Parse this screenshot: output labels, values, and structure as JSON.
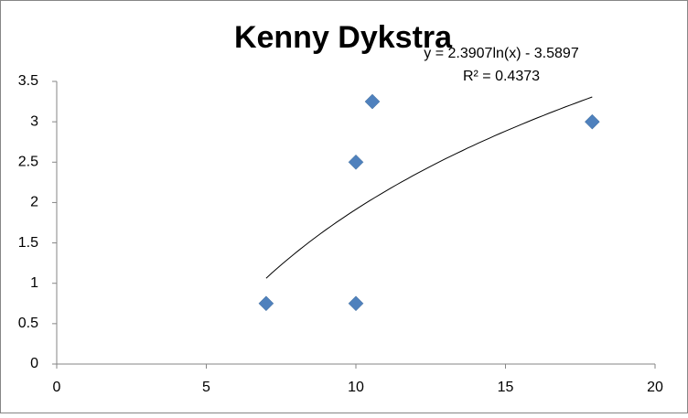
{
  "chart_data": {
    "type": "scatter",
    "title": "Kenny Dykstra",
    "x": [
      7,
      10,
      10,
      10.55,
      17.9
    ],
    "values": [
      0.75,
      0.75,
      2.5,
      3.25,
      3.0
    ],
    "color": "#4f81bd",
    "xlim": [
      0,
      20
    ],
    "xticks": [
      0,
      5,
      10,
      15,
      20
    ],
    "ylim": [
      0,
      3.5
    ],
    "yticks": [
      0,
      0.5,
      1,
      1.5,
      2,
      2.5,
      3,
      3.5
    ],
    "grid": false,
    "trendline": {
      "equation": "y = 2.3907ln(x) - 3.5897",
      "r_squared": "R² = 0.4373",
      "coefficients": [
        2.3907,
        -3.5897
      ],
      "xrange": [
        7,
        17.9
      ]
    }
  }
}
